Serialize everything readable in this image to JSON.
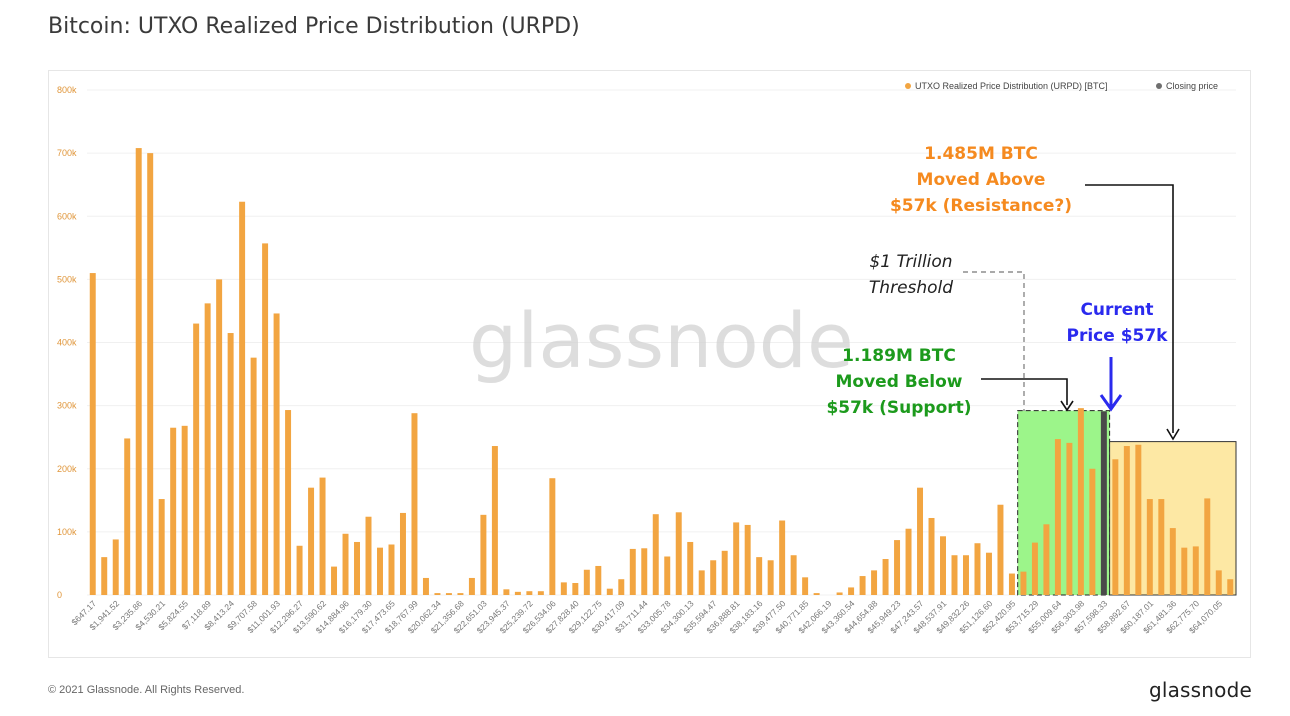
{
  "title": "Bitcoin: UTXO Realized Price Distribution (URPD)",
  "footer": {
    "copyright": "© 2021 Glassnode. All Rights Reserved.",
    "logo": "glassnode"
  },
  "watermark": "glassnode",
  "colors": {
    "bar": "#f2a541",
    "closing": "#4a4a4a",
    "support_fill": "#9cf58a",
    "resistance_fill": "#fde8a4",
    "support_text": "#1c9a1c",
    "resistance_text": "#f58a1f",
    "price_text": "#2a2aee"
  },
  "legend": [
    {
      "label": "UTXO Realized Price Distribution (URPD) [BTC]",
      "color": "#f2a541"
    },
    {
      "label": "Closing price",
      "color": "#6e6e6e"
    }
  ],
  "annotations": {
    "resistance": [
      "1.485M BTC",
      "Moved Above",
      "$57k (Resistance?)"
    ],
    "support": [
      "1.189M BTC",
      "Moved Below",
      "$57k (Support)"
    ],
    "current_price": [
      "Current",
      "Price $57k"
    ],
    "threshold": [
      "$1 Trillion",
      "Threshold"
    ]
  },
  "chart_data": {
    "type": "bar",
    "ylim": [
      0,
      800000
    ],
    "yticks": [
      0,
      100000,
      200000,
      300000,
      400000,
      500000,
      600000,
      700000,
      800000
    ],
    "ytick_labels": [
      "0",
      "100k",
      "200k",
      "300k",
      "400k",
      "500k",
      "600k",
      "700k",
      "800k"
    ],
    "xtick_labels": [
      "$647.17",
      "$1,941.52",
      "$3,235.86",
      "$4,530.21",
      "$5,824.55",
      "$7,118.89",
      "$8,413.24",
      "$9,707.58",
      "$11,001.93",
      "$12,296.27",
      "$13,590.62",
      "$14,884.96",
      "$16,179.30",
      "$17,473.65",
      "$18,767.99",
      "$20,062.34",
      "$21,356.68",
      "$22,651.03",
      "$23,945.37",
      "$25,239.72",
      "$26,534.06",
      "$27,828.40",
      "$29,122.75",
      "$30,417.09",
      "$31,711.44",
      "$33,005.78",
      "$34,300.13",
      "$35,594.47",
      "$36,888.81",
      "$38,183.16",
      "$39,477.50",
      "$40,771.85",
      "$42,066.19",
      "$43,360.54",
      "$44,654.88",
      "$45,949.23",
      "$47,243.57",
      "$48,537.91",
      "$49,832.26",
      "$51,126.60",
      "$52,420.95",
      "$53,715.29",
      "$55,009.64",
      "$56,303.98",
      "$57,598.33",
      "$58,892.67",
      "$60,187.01",
      "$61,481.36",
      "$62,775.70",
      "$64,070.05"
    ],
    "series": [
      {
        "name": "UTXO Realized Price Distribution (URPD) [BTC]",
        "values": [
          510000,
          60000,
          88000,
          248000,
          708000,
          700000,
          152000,
          265000,
          268000,
          430000,
          462000,
          500000,
          415000,
          623000,
          376000,
          557000,
          446000,
          293000,
          78000,
          170000,
          186000,
          45000,
          97000,
          84000,
          124000,
          75000,
          80000,
          130000,
          288000,
          27000,
          3000,
          3000,
          3000,
          27000,
          127000,
          236000,
          9000,
          5000,
          6000,
          6000,
          185000,
          20000,
          19000,
          40000,
          46000,
          10000,
          25000,
          73000,
          74000,
          128000,
          61000,
          131000,
          84000,
          39000,
          55000,
          70000,
          115000,
          111000,
          60000,
          55000,
          118000,
          63000,
          28000,
          3000,
          0,
          4000,
          12000,
          30000,
          39000,
          57000,
          87000,
          105000,
          170000,
          122000,
          93000,
          63000,
          63000,
          82000,
          67000,
          143000,
          34000,
          37000,
          83000,
          112000,
          247000,
          241000,
          296000,
          200000,
          291000,
          215000,
          236000,
          238000,
          152000,
          152000,
          106000,
          75000,
          77000,
          153000,
          39000,
          25000
        ]
      },
      {
        "name": "Closing price",
        "bar_index": 88,
        "value": 200000
      }
    ],
    "support_range": {
      "from_index": 81,
      "to_index": 88,
      "level": 292000
    },
    "resistance_range": {
      "from_index": 89,
      "to_index": 99,
      "level": 243000
    },
    "threshold_index": 81,
    "legend_position": "top-right",
    "grid": true
  }
}
